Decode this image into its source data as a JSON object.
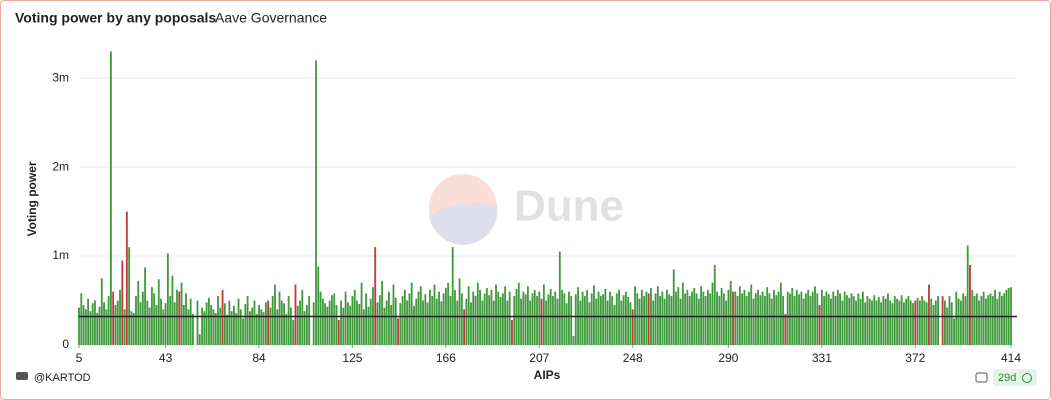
{
  "chart_data": {
    "type": "bar",
    "title": "Voting power by any poposals",
    "subtitle": "Aave Governance",
    "x_label": "AIPs",
    "y_label": "Voting power",
    "watermark": "Dune",
    "author": "@KARTOD",
    "age": "29d",
    "xlim": [
      5,
      414
    ],
    "xticks": [
      5,
      43,
      84,
      125,
      166,
      207,
      248,
      290,
      331,
      372,
      414
    ],
    "ylim": [
      0,
      3.35
    ],
    "yticks": [
      0,
      {
        "value": 1,
        "label": "1m"
      },
      {
        "value": 2,
        "label": "2m"
      },
      {
        "value": 3,
        "label": "3m"
      }
    ],
    "grid": true,
    "hline": 0.32,
    "hline_color": "#222222",
    "x": [
      5,
      6,
      7,
      8,
      9,
      10,
      11,
      12,
      13,
      14,
      15,
      16,
      17,
      18,
      19,
      20,
      21,
      22,
      23,
      24,
      25,
      26,
      27,
      28,
      29,
      30,
      31,
      32,
      33,
      34,
      35,
      36,
      37,
      38,
      39,
      40,
      41,
      42,
      43,
      44,
      45,
      46,
      47,
      48,
      49,
      50,
      51,
      52,
      53,
      54,
      55,
      56,
      57,
      58,
      59,
      60,
      61,
      62,
      63,
      64,
      65,
      66,
      67,
      68,
      69,
      70,
      71,
      72,
      73,
      74,
      75,
      76,
      77,
      78,
      79,
      80,
      81,
      82,
      83,
      84,
      85,
      86,
      87,
      88,
      89,
      90,
      91,
      92,
      93,
      94,
      95,
      96,
      97,
      98,
      99,
      100,
      101,
      102,
      103,
      104,
      105,
      106,
      107,
      108,
      109,
      110,
      111,
      112,
      113,
      114,
      115,
      116,
      117,
      118,
      119,
      120,
      121,
      122,
      123,
      124,
      125,
      126,
      127,
      128,
      129,
      130,
      131,
      132,
      133,
      134,
      135,
      136,
      137,
      138,
      139,
      140,
      141,
      142,
      143,
      144,
      145,
      146,
      147,
      148,
      149,
      150,
      151,
      152,
      153,
      154,
      155,
      156,
      157,
      158,
      159,
      160,
      161,
      162,
      163,
      164,
      165,
      166,
      167,
      168,
      169,
      170,
      171,
      172,
      173,
      174,
      175,
      176,
      177,
      178,
      179,
      180,
      181,
      182,
      183,
      184,
      185,
      186,
      187,
      188,
      189,
      190,
      191,
      192,
      193,
      194,
      195,
      196,
      197,
      198,
      199,
      200,
      201,
      202,
      203,
      204,
      205,
      206,
      207,
      208,
      209,
      210,
      211,
      212,
      213,
      214,
      215,
      216,
      217,
      218,
      219,
      220,
      221,
      222,
      223,
      224,
      225,
      226,
      227,
      228,
      229,
      230,
      231,
      232,
      233,
      234,
      235,
      236,
      237,
      238,
      239,
      240,
      241,
      242,
      243,
      244,
      245,
      246,
      247,
      248,
      249,
      250,
      251,
      252,
      253,
      254,
      255,
      256,
      257,
      258,
      259,
      260,
      261,
      262,
      263,
      264,
      265,
      266,
      267,
      268,
      269,
      270,
      271,
      272,
      273,
      274,
      275,
      276,
      277,
      278,
      279,
      280,
      281,
      282,
      283,
      284,
      285,
      286,
      287,
      288,
      289,
      290,
      291,
      292,
      293,
      294,
      295,
      296,
      297,
      298,
      299,
      300,
      301,
      302,
      303,
      304,
      305,
      306,
      307,
      308,
      309,
      310,
      311,
      312,
      313,
      314,
      315,
      316,
      317,
      318,
      319,
      320,
      321,
      322,
      323,
      324,
      325,
      326,
      327,
      328,
      329,
      330,
      331,
      332,
      333,
      334,
      335,
      336,
      337,
      338,
      339,
      340,
      341,
      342,
      343,
      344,
      345,
      346,
      347,
      348,
      349,
      350,
      351,
      352,
      353,
      354,
      355,
      356,
      357,
      358,
      359,
      360,
      361,
      362,
      363,
      364,
      365,
      366,
      367,
      368,
      369,
      370,
      371,
      372,
      373,
      374,
      375,
      376,
      377,
      378,
      379,
      380,
      381,
      382,
      383,
      384,
      385,
      386,
      387,
      388,
      389,
      390,
      391,
      392,
      393,
      394,
      395,
      396,
      397,
      398,
      399,
      400,
      401,
      402,
      403,
      404,
      405,
      406,
      407,
      408,
      409,
      410,
      411,
      412,
      413,
      414
    ],
    "series": [
      {
        "color": "#3f9a3c",
        "values": [
          0.42,
          0.58,
          0.45,
          0.4,
          0.52,
          0.38,
          0.47,
          0.5,
          0.36,
          0.43,
          0.75,
          0.48,
          0.4,
          0.55,
          3.3,
          null,
          0.45,
          0.5,
          0.62,
          null,
          0.4,
          null,
          1.1,
          0.38,
          0.36,
          0.55,
          0.72,
          0.48,
          0.6,
          0.87,
          0.5,
          0.42,
          0.65,
          0.58,
          0.45,
          0.74,
          0.52,
          0.4,
          0.47,
          1.03,
          0.55,
          0.78,
          0.48,
          0.62,
          null,
          0.7,
          0.45,
          0.58,
          0.4,
          0.52,
          0.35,
          0,
          0.5,
          0.12,
          0.42,
          0.38,
          0.48,
          0.53,
          0.45,
          0.4,
          0.36,
          0.55,
          0.42,
          null,
          0.47,
          0.34,
          0.5,
          0.38,
          0.44,
          0.36,
          0.52,
          0.4,
          0.3,
          0.46,
          0.55,
          0.38,
          0.42,
          0.5,
          0.35,
          0.45,
          0.4,
          0.37,
          0.48,
          null,
          0.42,
          0.55,
          0.68,
          0.4,
          0.6,
          0.5,
          0.47,
          0.35,
          0.55,
          0.42,
          0.28,
          null,
          0.44,
          0.5,
          0.62,
          0.38,
          0.45,
          0.55,
          0,
          0.48,
          3.2,
          0.88,
          0.6,
          0.52,
          0.47,
          0.43,
          0.5,
          0.56,
          0.58,
          0.45,
          null,
          0.5,
          0.42,
          0.6,
          0.48,
          0.44,
          0.55,
          0.62,
          0.5,
          0.46,
          0.7,
          0.4,
          0.58,
          0.43,
          0.52,
          0.65,
          null,
          0.48,
          0.56,
          0.72,
          0.42,
          0.5,
          0.6,
          0.45,
          0.68,
          0.53,
          null,
          0.47,
          0.55,
          0.62,
          0.5,
          0.58,
          0.7,
          0.44,
          0.52,
          0.6,
          0.66,
          0.5,
          0.57,
          0.48,
          0.62,
          0.55,
          0.68,
          0.52,
          0.6,
          0.49,
          0.58,
          0.64,
          0.7,
          0.55,
          1.1,
          0.62,
          0.5,
          0.75,
          0.58,
          null,
          0.52,
          0.66,
          0.48,
          0.6,
          0.55,
          0.7,
          0.62,
          0.5,
          0.58,
          0.64,
          0.56,
          0.62,
          0.5,
          0.68,
          0.6,
          0.54,
          0.58,
          0.66,
          0.5,
          0.6,
          null,
          0.55,
          0.63,
          0.7,
          0.52,
          0.6,
          0.57,
          0.66,
          0.5,
          0.58,
          0.62,
          0.55,
          0.6,
          null,
          0.68,
          0.5,
          0.57,
          0.63,
          0.55,
          0.6,
          0.52,
          1.05,
          0.62,
          0.58,
          0.47,
          0.6,
          0.55,
          0.1,
          0.57,
          0.65,
          0.5,
          0.6,
          0.55,
          0.62,
          0.48,
          0.58,
          0.67,
          0.52,
          0.6,
          0.55,
          0.57,
          0.63,
          0.5,
          0.6,
          0.55,
          0.45,
          0.58,
          0.62,
          0.5,
          0.56,
          0.6,
          0.54,
          0.48,
          null,
          0.66,
          0.58,
          0.52,
          0.62,
          0.55,
          0.6,
          null,
          0.64,
          0.5,
          0.58,
          0.66,
          0.55,
          0.6,
          0.52,
          0.62,
          0.57,
          0.55,
          0.85,
          0.6,
          0.65,
          0.52,
          0.7,
          0.58,
          0.62,
          0.55,
          0.6,
          0.64,
          0.58,
          0.52,
          0.66,
          0.6,
          0.55,
          0.62,
          0.58,
          0.7,
          0.9,
          0.6,
          0.55,
          0.64,
          0.58,
          0.5,
          0.62,
          0.72,
          null,
          0.6,
          0.55,
          0.66,
          0.58,
          0.62,
          0.55,
          0.6,
          0.68,
          0.52,
          0.58,
          0.62,
          0.56,
          0.6,
          0.55,
          0.65,
          0.58,
          0.52,
          0.62,
          0.56,
          0.6,
          0.7,
          0.55,
          null,
          0.6,
          0.58,
          0.64,
          0.55,
          0.62,
          0.57,
          0.6,
          0.52,
          0.58,
          0.62,
          0.55,
          0.6,
          0.66,
          0.58,
          null,
          0.62,
          0.55,
          0.6,
          0.57,
          0.52,
          0.6,
          0.55,
          0.62,
          0.58,
          0.5,
          0.6,
          0.56,
          0.53,
          0.58,
          0.55,
          0.5,
          0.58,
          0.52,
          0.6,
          0.48,
          0.55,
          0.52,
          0.5,
          0.56,
          0.5,
          0.54,
          0.48,
          0.55,
          0.52,
          0.58,
          0.5,
          0.47,
          0.55,
          0.52,
          0.5,
          0.56,
          0.48,
          0.52,
          0.55,
          0.5,
          0.47,
          null,
          0.53,
          0.5,
          0.55,
          0.5,
          0.48,
          null,
          0.52,
          0.45,
          0.5,
          0.55,
          0,
          null,
          0.5,
          0.42,
          0.55,
          0.48,
          0.3,
          0.6,
          0.52,
          0.5,
          0.58,
          0.55,
          1.12,
          null,
          0.62,
          0.55,
          0.58,
          0.5,
          0.55,
          0.6,
          0.52,
          0.56,
          0.58,
          0.55,
          0.62,
          0.52,
          0.6,
          0.55,
          0.58,
          0.62,
          0.64,
          0.65
        ]
      },
      {
        "color": "#c0393b",
        "values": [
          null,
          null,
          null,
          null,
          null,
          null,
          null,
          null,
          null,
          null,
          null,
          null,
          null,
          null,
          null,
          0.6,
          null,
          null,
          null,
          0.95,
          null,
          1.5,
          null,
          null,
          null,
          null,
          null,
          null,
          null,
          null,
          null,
          null,
          null,
          null,
          null,
          null,
          null,
          null,
          null,
          null,
          null,
          null,
          null,
          null,
          0.6,
          null,
          null,
          null,
          null,
          null,
          null,
          null,
          null,
          null,
          null,
          null,
          null,
          null,
          null,
          null,
          null,
          null,
          null,
          0.62,
          null,
          null,
          null,
          null,
          null,
          null,
          null,
          null,
          null,
          null,
          null,
          null,
          null,
          null,
          null,
          null,
          null,
          null,
          null,
          0.5,
          null,
          null,
          null,
          null,
          null,
          null,
          null,
          null,
          null,
          null,
          null,
          0.68,
          null,
          null,
          null,
          null,
          null,
          null,
          null,
          null,
          null,
          null,
          null,
          null,
          null,
          null,
          null,
          null,
          null,
          null,
          0.28,
          null,
          null,
          null,
          null,
          null,
          null,
          null,
          null,
          null,
          null,
          null,
          null,
          null,
          null,
          null,
          1.1,
          null,
          null,
          null,
          null,
          null,
          null,
          null,
          null,
          null,
          0.3,
          null,
          null,
          null,
          null,
          null,
          null,
          null,
          null,
          null,
          null,
          null,
          null,
          null,
          null,
          null,
          null,
          null,
          null,
          null,
          null,
          null,
          null,
          null,
          null,
          null,
          null,
          null,
          null,
          0.4,
          null,
          null,
          null,
          null,
          null,
          null,
          null,
          null,
          null,
          null,
          null,
          null,
          null,
          null,
          null,
          null,
          null,
          null,
          null,
          null,
          0.28,
          null,
          null,
          null,
          null,
          null,
          null,
          null,
          null,
          null,
          null,
          null,
          null,
          0.52,
          null,
          null,
          null,
          null,
          null,
          null,
          null,
          null,
          null,
          null,
          null,
          null,
          null,
          null,
          null,
          null,
          null,
          null,
          null,
          null,
          null,
          null,
          null,
          null,
          null,
          null,
          null,
          null,
          null,
          null,
          null,
          null,
          null,
          null,
          null,
          null,
          null,
          null,
          null,
          0.4,
          null,
          null,
          null,
          null,
          null,
          null,
          0.58,
          null,
          null,
          null,
          null,
          null,
          null,
          null,
          null,
          null,
          null,
          null,
          null,
          null,
          null,
          null,
          null,
          null,
          null,
          null,
          null,
          null,
          null,
          null,
          null,
          null,
          null,
          null,
          null,
          null,
          null,
          null,
          null,
          null,
          null,
          null,
          null,
          0.6,
          null,
          null,
          null,
          null,
          null,
          null,
          null,
          null,
          null,
          null,
          null,
          null,
          null,
          null,
          null,
          null,
          null,
          null,
          null,
          null,
          null,
          null,
          0.35,
          null,
          null,
          null,
          null,
          null,
          null,
          null,
          null,
          null,
          null,
          null,
          null,
          null,
          null,
          0.45,
          null,
          null,
          null,
          null,
          null,
          null,
          null,
          null,
          null,
          null,
          null,
          null,
          null,
          null,
          null,
          null,
          null,
          null,
          null,
          null,
          null,
          null,
          null,
          null,
          null,
          null,
          null,
          null,
          null,
          null,
          null,
          null,
          null,
          null,
          null,
          null,
          null,
          null,
          null,
          null,
          null,
          0.5,
          null,
          null,
          null,
          null,
          null,
          0.68,
          null,
          null,
          null,
          null,
          null,
          0.55,
          null,
          null,
          null,
          null,
          null,
          null,
          null,
          null,
          null,
          null,
          null,
          0.9,
          null,
          null,
          null,
          null,
          null,
          null,
          null,
          null,
          null,
          null,
          null,
          null,
          null,
          null,
          null,
          null,
          null,
          null
        ]
      }
    ]
  }
}
